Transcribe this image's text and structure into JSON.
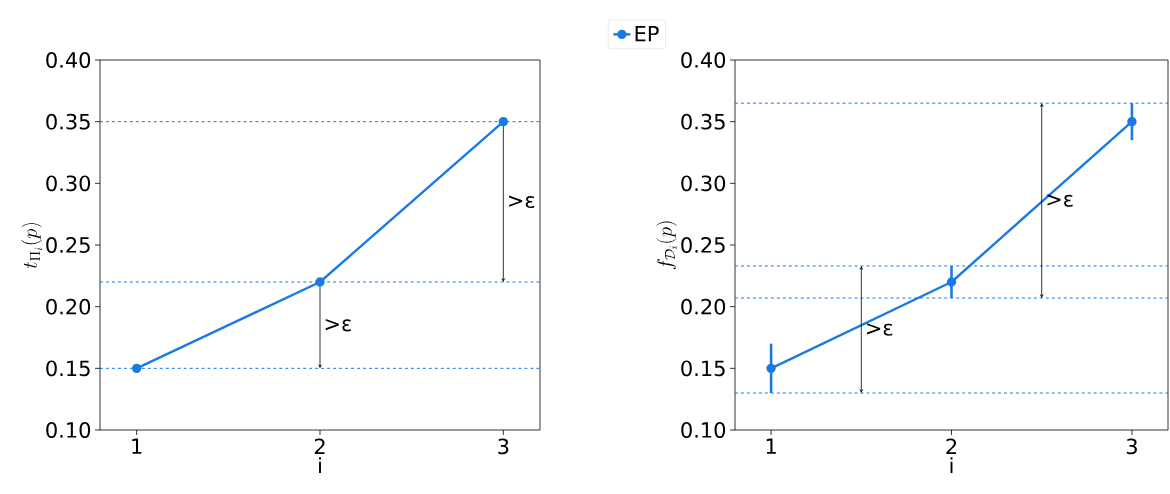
{
  "chart_data": [
    {
      "type": "line",
      "x": [
        1,
        2,
        3
      ],
      "xlabel": "i",
      "ylabel": "t_{\\Pi_i}(p)",
      "series": [
        {
          "name": "EP",
          "color": "#1a7ae6",
          "values": [
            0.15,
            0.22,
            0.35
          ]
        }
      ],
      "xlim": [
        0.8,
        3.2
      ],
      "xticks": [
        1,
        2,
        3
      ],
      "ylim": [
        0.1,
        0.4
      ],
      "yticks": [
        {
          "value": 0.1,
          "label": "0.10"
        },
        {
          "value": 0.15,
          "label": "0.15"
        },
        {
          "value": 0.2,
          "label": "0.20"
        },
        {
          "value": 0.25,
          "label": "0.25"
        },
        {
          "value": 0.3,
          "label": "0.30"
        },
        {
          "value": 0.35,
          "label": "0.35"
        },
        {
          "value": 0.4,
          "label": "0.40"
        }
      ],
      "ref_lines": [
        {
          "axis": "y",
          "value": 0.35,
          "color": "#1a7ae6",
          "line_style": "dashed"
        },
        {
          "axis": "y",
          "value": 0.22,
          "color": "#1a7ae6",
          "line_style": "dashed"
        },
        {
          "axis": "y",
          "value": 0.15,
          "color": "#1a7ae6",
          "line_style": "dashed"
        }
      ],
      "annotations": [
        ">ε",
        ">ε"
      ],
      "marker": "circle",
      "line_style": "solid",
      "legend": "top",
      "grid": false
    },
    {
      "type": "line",
      "x": [
        1,
        2,
        3
      ],
      "xlabel": "i",
      "ylabel": "f_{\\mathcal{D}_i}(p)",
      "series": [
        {
          "color": "#1a7ae6",
          "values": [
            0.15,
            0.22,
            0.35
          ],
          "errors": [
            0.02,
            0.013,
            0.015
          ]
        }
      ],
      "xlim": [
        0.8,
        3.2
      ],
      "xticks": [
        1,
        2,
        3
      ],
      "ylim": [
        0.1,
        0.4
      ],
      "yticks": [
        {
          "value": 0.1,
          "label": "0.10"
        },
        {
          "value": 0.15,
          "label": "0.15"
        },
        {
          "value": 0.2,
          "label": "0.20"
        },
        {
          "value": 0.25,
          "label": "0.25"
        },
        {
          "value": 0.3,
          "label": "0.30"
        },
        {
          "value": 0.35,
          "label": "0.35"
        },
        {
          "value": 0.4,
          "label": "0.40"
        }
      ],
      "ref_lines": [
        {
          "axis": "y",
          "value": 0.365,
          "color": "#1a7ae6",
          "line_style": "dashed"
        },
        {
          "axis": "y",
          "value": 0.233,
          "color": "#1a7ae6",
          "line_style": "dashed"
        },
        {
          "axis": "y",
          "value": 0.207,
          "color": "#1a7ae6",
          "line_style": "dashed"
        },
        {
          "axis": "y",
          "value": 0.13,
          "color": "#1a7ae6",
          "line_style": "dashed"
        }
      ],
      "annotations": [
        ">ε",
        ">ε"
      ],
      "marker": "circle",
      "line_style": "solid",
      "grid": false
    }
  ]
}
